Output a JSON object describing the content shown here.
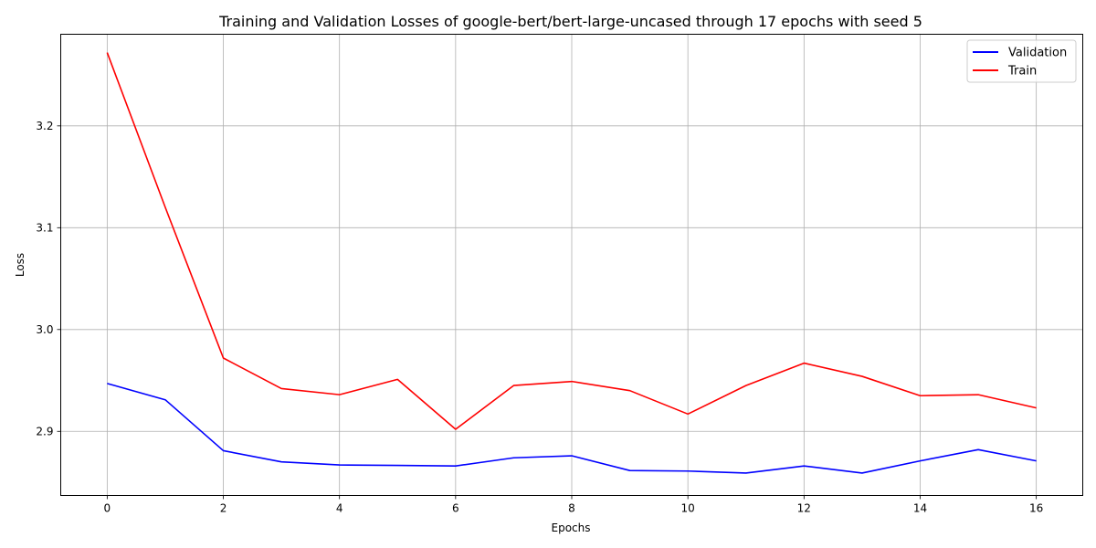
{
  "chart_data": {
    "type": "line",
    "title": "Training and Validation Losses of google-bert/bert-large-uncased through 17 epochs with seed 5",
    "xlabel": "Epochs",
    "ylabel": "Loss",
    "x": [
      0,
      1,
      2,
      3,
      4,
      5,
      6,
      7,
      8,
      9,
      10,
      11,
      12,
      13,
      14,
      15,
      16
    ],
    "xlim": [
      -0.8,
      16.8
    ],
    "ylim": [
      2.837,
      3.29
    ],
    "xticks": [
      0,
      2,
      4,
      6,
      8,
      10,
      12,
      14,
      16
    ],
    "yticks": [
      2.9,
      3.0,
      3.1,
      3.2
    ],
    "ytick_labels": [
      "2.9",
      "3.0",
      "3.1",
      "3.2"
    ],
    "grid": true,
    "legend_position": "top-right",
    "series": [
      {
        "name": "Validation",
        "color": "#0000ff",
        "values": [
          2.947,
          2.931,
          2.881,
          2.87,
          2.867,
          2.8665,
          2.866,
          2.874,
          2.876,
          2.8615,
          2.861,
          2.859,
          2.866,
          2.859,
          2.871,
          2.882,
          2.871
        ]
      },
      {
        "name": "Train",
        "color": "#ff0000",
        "values": [
          3.272,
          3.12,
          2.972,
          2.942,
          2.936,
          2.951,
          2.902,
          2.945,
          2.949,
          2.94,
          2.917,
          2.945,
          2.967,
          2.954,
          2.935,
          2.936,
          2.923
        ]
      }
    ]
  }
}
